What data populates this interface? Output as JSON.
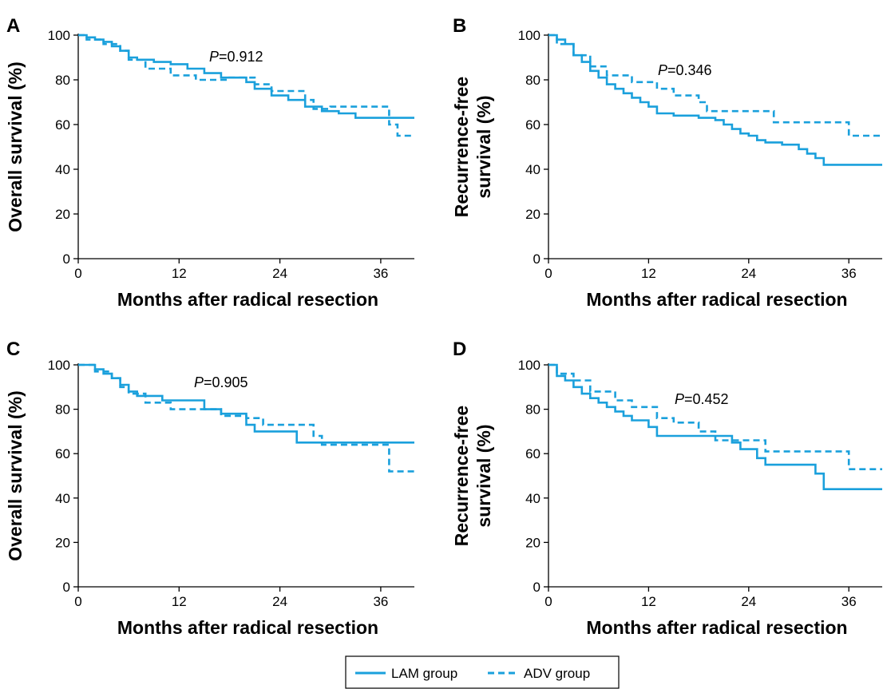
{
  "colors": {
    "series": "#1aa0dc",
    "axis": "#000000"
  },
  "legend": {
    "items": [
      {
        "label": "LAM group",
        "style": "solid"
      },
      {
        "label": "ADV group",
        "style": "dashed"
      }
    ]
  },
  "chart_data": [
    {
      "type": "line",
      "panel": "A",
      "step": true,
      "ylabel": [
        "Overall survival (%)"
      ],
      "xlabel": "Months after radical resection",
      "xlim": [
        0,
        40
      ],
      "ylim": [
        0,
        100
      ],
      "xticks": [
        0,
        12,
        24,
        36
      ],
      "yticks": [
        0,
        20,
        40,
        60,
        80,
        100
      ],
      "p_prefix": "P",
      "p_rest": "=0.912",
      "series": [
        {
          "name": "LAM group",
          "style": "solid",
          "x": [
            0,
            1,
            2,
            3,
            4,
            5,
            6,
            7,
            9,
            11,
            13,
            15,
            17,
            20,
            21,
            23,
            25,
            27,
            29,
            31,
            33,
            40
          ],
          "y": [
            100,
            99,
            98,
            97,
            95,
            93,
            90,
            89,
            88,
            87,
            85,
            83,
            81,
            79,
            76,
            73,
            71,
            68,
            66,
            65,
            63,
            63
          ]
        },
        {
          "name": "ADV group",
          "style": "dashed",
          "x": [
            0,
            1,
            3,
            5,
            6,
            8,
            11,
            14,
            18,
            21,
            23,
            25,
            27,
            28,
            30,
            37,
            38,
            40
          ],
          "y": [
            100,
            98,
            96,
            93,
            89,
            85,
            82,
            80,
            81,
            78,
            75,
            75,
            71,
            67,
            68,
            60,
            55,
            55
          ]
        }
      ]
    },
    {
      "type": "line",
      "panel": "B",
      "step": true,
      "ylabel": [
        "Recurrence-free",
        "survival (%)"
      ],
      "xlabel": "Months after radical resection",
      "xlim": [
        0,
        40
      ],
      "ylim": [
        0,
        100
      ],
      "xticks": [
        0,
        12,
        24,
        36
      ],
      "yticks": [
        0,
        20,
        40,
        60,
        80,
        100
      ],
      "p_prefix": "P",
      "p_rest": "=0.346",
      "series": [
        {
          "name": "LAM group",
          "style": "solid",
          "x": [
            0,
            1,
            2,
            3,
            4,
            5,
            6,
            7,
            8,
            9,
            10,
            11,
            12,
            13,
            15,
            18,
            20,
            21,
            22,
            23,
            24,
            25,
            26,
            28,
            30,
            31,
            32,
            33,
            40
          ],
          "y": [
            100,
            98,
            96,
            91,
            88,
            84,
            81,
            78,
            76,
            74,
            72,
            70,
            68,
            65,
            64,
            63,
            62,
            60,
            58,
            56,
            55,
            53,
            52,
            51,
            49,
            47,
            45,
            42,
            42
          ]
        },
        {
          "name": "ADV group",
          "style": "dashed",
          "x": [
            0,
            1,
            3,
            5,
            7,
            10,
            13,
            15,
            18,
            19,
            27,
            36,
            37,
            40
          ],
          "y": [
            100,
            96,
            91,
            86,
            82,
            79,
            76,
            73,
            70,
            66,
            61,
            55,
            55,
            55
          ]
        }
      ]
    },
    {
      "type": "line",
      "panel": "C",
      "step": true,
      "ylabel": [
        "Overall survival (%)"
      ],
      "xlabel": "Months after radical resection",
      "xlim": [
        0,
        40
      ],
      "ylim": [
        0,
        100
      ],
      "xticks": [
        0,
        12,
        24,
        36
      ],
      "yticks": [
        0,
        20,
        40,
        60,
        80,
        100
      ],
      "p_prefix": "P",
      "p_rest": "=0.905",
      "series": [
        {
          "name": "LAM group",
          "style": "solid",
          "x": [
            0,
            2,
            3,
            4,
            5,
            6,
            7,
            10,
            15,
            17,
            20,
            21,
            26,
            40
          ],
          "y": [
            100,
            98,
            96,
            94,
            91,
            88,
            86,
            84,
            80,
            78,
            73,
            70,
            65,
            65
          ]
        },
        {
          "name": "ADV group",
          "style": "dashed",
          "x": [
            0,
            2,
            4,
            5,
            6,
            8,
            11,
            15,
            17,
            20,
            22,
            28,
            29,
            37,
            40
          ],
          "y": [
            100,
            97,
            94,
            90,
            87,
            83,
            80,
            80,
            77,
            76,
            73,
            68,
            64,
            52,
            52
          ]
        }
      ]
    },
    {
      "type": "line",
      "panel": "D",
      "step": true,
      "ylabel": [
        "Recurrence-free",
        "survival (%)"
      ],
      "xlabel": "Months after radical resection",
      "xlim": [
        0,
        40
      ],
      "ylim": [
        0,
        100
      ],
      "xticks": [
        0,
        12,
        24,
        36
      ],
      "yticks": [
        0,
        20,
        40,
        60,
        80,
        100
      ],
      "p_prefix": "P",
      "p_rest": "=0.452",
      "series": [
        {
          "name": "LAM group",
          "style": "solid",
          "x": [
            0,
            1,
            2,
            3,
            4,
            5,
            6,
            7,
            8,
            9,
            10,
            12,
            13,
            22,
            23,
            25,
            26,
            32,
            33,
            40
          ],
          "y": [
            100,
            95,
            93,
            90,
            87,
            85,
            83,
            81,
            79,
            77,
            75,
            72,
            68,
            65,
            62,
            58,
            55,
            51,
            44,
            44
          ]
        },
        {
          "name": "ADV group",
          "style": "dashed",
          "x": [
            0,
            1,
            3,
            5,
            8,
            10,
            13,
            15,
            18,
            20,
            26,
            36,
            37,
            40
          ],
          "y": [
            100,
            96,
            93,
            88,
            84,
            81,
            76,
            74,
            70,
            66,
            61,
            53,
            53,
            53
          ]
        }
      ]
    }
  ]
}
